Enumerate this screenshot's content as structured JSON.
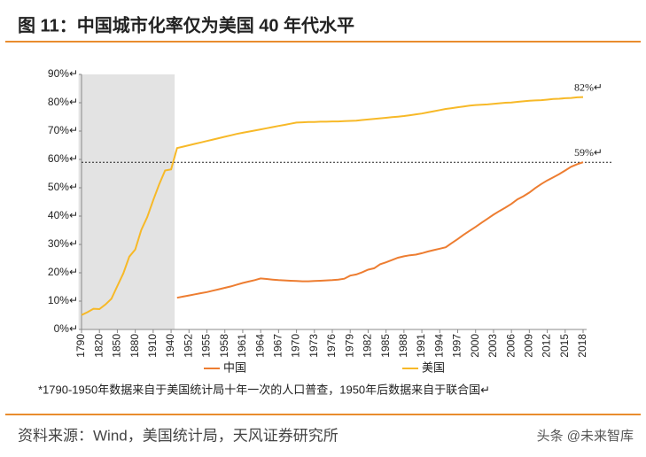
{
  "header": {
    "title": "图 11：中国城市化率仅为美国 40 年代水平"
  },
  "chart_data": {
    "type": "line",
    "categories": [
      "1790",
      null,
      null,
      "1820",
      null,
      null,
      "1850",
      null,
      null,
      "1880",
      null,
      null,
      "1910",
      null,
      null,
      "1940",
      null,
      null,
      "1952",
      null,
      null,
      "1955",
      null,
      null,
      "1958",
      null,
      null,
      "1961",
      null,
      null,
      "1964",
      null,
      null,
      "1967",
      null,
      null,
      "1970",
      null,
      null,
      "1973",
      null,
      null,
      "1976",
      null,
      null,
      "1979",
      null,
      null,
      "1982",
      null,
      null,
      "1985",
      null,
      null,
      "1988",
      null,
      null,
      "1991",
      null,
      null,
      "1994",
      null,
      null,
      "1997",
      null,
      null,
      "2000",
      null,
      null,
      "2003",
      null,
      null,
      "2006",
      null,
      null,
      "2009",
      null,
      null,
      "2012",
      null,
      null,
      "2015",
      null,
      null,
      "2018"
    ],
    "series": [
      {
        "name": "中国",
        "color": "#ED7D31",
        "values": [
          null,
          null,
          null,
          null,
          null,
          null,
          null,
          null,
          null,
          null,
          null,
          null,
          null,
          null,
          null,
          null,
          11.2,
          11.6,
          12.0,
          12.4,
          12.8,
          13.2,
          13.7,
          14.2,
          14.7,
          15.2,
          15.8,
          16.4,
          16.9,
          17.4,
          18.0,
          17.8,
          17.6,
          17.4,
          17.3,
          17.2,
          17.1,
          17.0,
          17.0,
          17.1,
          17.2,
          17.3,
          17.4,
          17.6,
          17.9,
          19.0,
          19.4,
          20.2,
          21.1,
          21.6,
          23.0,
          23.7,
          24.5,
          25.3,
          25.8,
          26.2,
          26.4,
          26.9,
          27.5,
          28.0,
          28.5,
          29.0,
          30.5,
          31.9,
          33.4,
          34.8,
          36.2,
          37.7,
          39.1,
          40.5,
          41.8,
          43.0,
          44.3,
          45.9,
          47.0,
          48.3,
          49.9,
          51.3,
          52.6,
          53.7,
          54.8,
          56.1,
          57.4,
          58.3,
          59.0
        ]
      },
      {
        "name": "美国",
        "color": "#F7B928",
        "values": [
          5.1,
          6.1,
          7.3,
          7.2,
          8.8,
          10.8,
          15.3,
          19.8,
          25.7,
          28.2,
          35.1,
          39.6,
          45.6,
          51.2,
          56.1,
          56.5,
          64.0,
          64.5,
          65.0,
          65.5,
          66.0,
          66.5,
          67.0,
          67.5,
          68.0,
          68.5,
          69.0,
          69.4,
          69.8,
          70.2,
          70.6,
          71.0,
          71.4,
          71.8,
          72.2,
          72.6,
          73.0,
          73.1,
          73.2,
          73.2,
          73.3,
          73.3,
          73.4,
          73.4,
          73.5,
          73.6,
          73.7,
          73.9,
          74.1,
          74.3,
          74.5,
          74.7,
          74.9,
          75.1,
          75.3,
          75.6,
          75.9,
          76.2,
          76.6,
          77.0,
          77.4,
          77.8,
          78.1,
          78.4,
          78.7,
          79.0,
          79.2,
          79.3,
          79.4,
          79.6,
          79.8,
          80.0,
          80.1,
          80.3,
          80.5,
          80.7,
          80.8,
          80.9,
          81.1,
          81.3,
          81.4,
          81.6,
          81.7,
          81.9,
          82.0
        ]
      }
    ],
    "ylim": [
      0,
      90
    ],
    "yticks": [
      {
        "value": 0,
        "label": "0%↵"
      },
      {
        "value": 10,
        "label": "10%↵"
      },
      {
        "value": 20,
        "label": "20%↵"
      },
      {
        "value": 30,
        "label": "30%↵"
      },
      {
        "value": 40,
        "label": "40%↵"
      },
      {
        "value": 50,
        "label": "50%↵"
      },
      {
        "value": 60,
        "label": "60%↵"
      },
      {
        "value": 70,
        "label": "70%↵"
      },
      {
        "value": 80,
        "label": "80%↵"
      },
      {
        "value": 90,
        "label": "90%↵"
      }
    ],
    "shade_categories": [
      "1790",
      "1940"
    ],
    "annotations": [
      {
        "value": 82,
        "label": "82%↵"
      },
      {
        "value": 59,
        "label": "59%↵"
      }
    ],
    "legend": "bottom"
  },
  "note": "*1790-1950年数据来自于美国统计局十年一次的人口普查，1950年后数据来自于联合国↵",
  "source": "资料来源：Wind，美国统计局，天风证券研究所",
  "watermark": "头条 @未来智库"
}
